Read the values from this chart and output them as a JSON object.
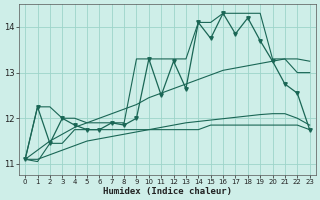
{
  "xlabel": "Humidex (Indice chaleur)",
  "bg_color": "#ceeee8",
  "grid_color": "#9dd4ca",
  "line_color": "#1a6655",
  "x_values": [
    0,
    1,
    2,
    3,
    4,
    5,
    6,
    7,
    8,
    9,
    10,
    11,
    12,
    13,
    14,
    15,
    16,
    17,
    18,
    19,
    20,
    21,
    22,
    23
  ],
  "main_line": [
    11.1,
    12.25,
    11.45,
    12.0,
    11.85,
    11.75,
    11.75,
    11.9,
    11.85,
    12.0,
    13.3,
    12.5,
    13.25,
    12.65,
    14.1,
    13.75,
    14.3,
    13.85,
    14.2,
    13.7,
    13.25,
    12.75,
    12.55,
    11.75
  ],
  "upper_env": [
    11.1,
    12.25,
    12.25,
    12.0,
    12.0,
    11.9,
    11.9,
    11.9,
    11.9,
    13.3,
    13.3,
    13.3,
    13.3,
    13.3,
    14.1,
    14.1,
    14.3,
    14.3,
    14.3,
    14.3,
    13.3,
    13.3,
    13.3,
    13.25
  ],
  "lower_env": [
    11.1,
    11.05,
    11.45,
    11.45,
    11.75,
    11.75,
    11.75,
    11.75,
    11.75,
    11.75,
    11.75,
    11.75,
    11.75,
    11.75,
    11.75,
    11.85,
    11.85,
    11.85,
    11.85,
    11.85,
    11.85,
    11.85,
    11.85,
    11.75
  ],
  "trend_upper": [
    11.1,
    11.3,
    11.5,
    11.65,
    11.8,
    11.9,
    12.0,
    12.1,
    12.2,
    12.3,
    12.45,
    12.55,
    12.65,
    12.75,
    12.85,
    12.95,
    13.05,
    13.1,
    13.15,
    13.2,
    13.25,
    13.3,
    13.0,
    13.0
  ],
  "trend_lower": [
    11.1,
    11.1,
    11.2,
    11.3,
    11.4,
    11.5,
    11.55,
    11.6,
    11.65,
    11.7,
    11.75,
    11.8,
    11.85,
    11.9,
    11.93,
    11.96,
    11.99,
    12.02,
    12.05,
    12.08,
    12.1,
    12.1,
    12.0,
    11.85
  ],
  "ylim": [
    10.75,
    14.5
  ],
  "yticks": [
    11,
    12,
    13,
    14
  ],
  "xticks": [
    0,
    1,
    2,
    3,
    4,
    5,
    6,
    7,
    8,
    9,
    10,
    11,
    12,
    13,
    14,
    15,
    16,
    17,
    18,
    19,
    20,
    21,
    22,
    23
  ]
}
